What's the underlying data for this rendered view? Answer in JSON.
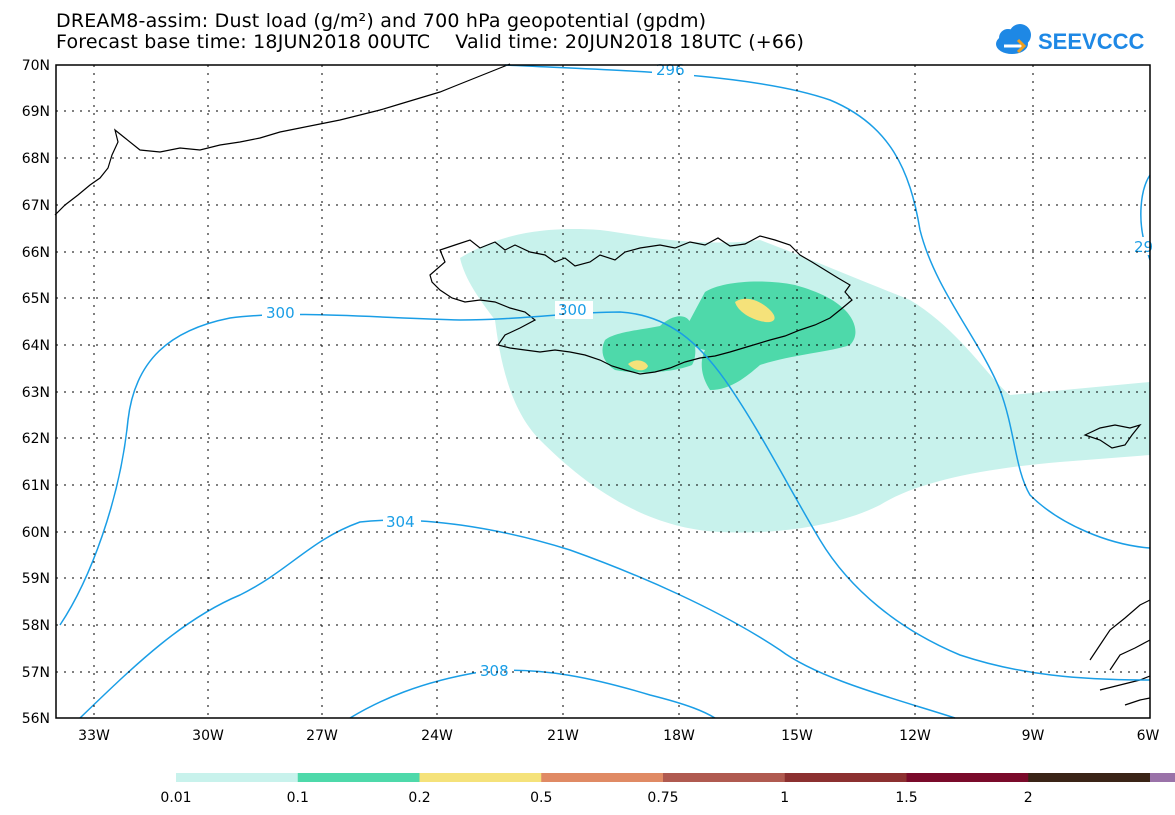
{
  "header": {
    "title_line1": "DREAM8-assim: Dust load (g/m²) and 700 hPa geopotential (gpdm)",
    "title_line2": "Forecast base time: 18JUN2018 00UTC    Valid time: 20JUN2018 18UTC (+66)"
  },
  "logo": {
    "text": "SEEVCCC",
    "color": "#1e88e5"
  },
  "map": {
    "lat_labels": [
      "70N",
      "69N",
      "68N",
      "67N",
      "66N",
      "65N",
      "64N",
      "63N",
      "62N",
      "61N",
      "60N",
      "59N",
      "58N",
      "57N",
      "56N"
    ],
    "lon_labels": [
      "33W",
      "30W",
      "27W",
      "24W",
      "21W",
      "18W",
      "15W",
      "12W",
      "9W",
      "6W"
    ],
    "contour_labels": [
      "296",
      "300",
      "300",
      "304",
      "308",
      "29"
    ],
    "contour_color": "#1a9ee6",
    "coast_color": "#000000"
  },
  "legend": {
    "colors": [
      "#c8f2ec",
      "#4ed9aa",
      "#f5e27a",
      "#e08a64",
      "#b05a50",
      "#8c3030",
      "#7a0a2a",
      "#3a2416",
      "#9a72a8"
    ],
    "tick_labels": [
      "0.01",
      "0.1",
      "0.2",
      "0.5",
      "0.75",
      "1",
      "1.5",
      "2"
    ]
  }
}
